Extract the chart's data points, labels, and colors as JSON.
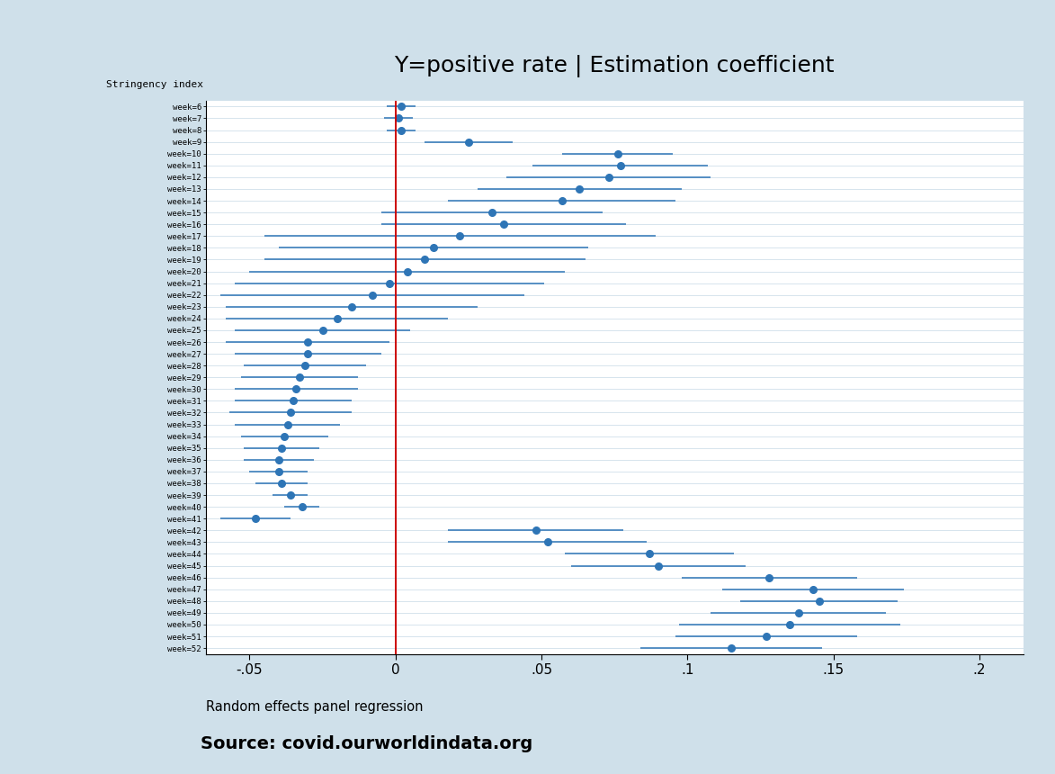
{
  "title": "Y=positive rate | Estimation coefficient",
  "xlabel_note": "Random effects panel regression",
  "source_note": "Source: covid.ourworldindata.org",
  "xlim": [
    -0.065,
    0.215
  ],
  "xticks": [
    -0.05,
    0,
    0.05,
    0.1,
    0.15,
    0.2
  ],
  "xtick_labels": [
    "-.05",
    "0",
    ".05",
    ".1",
    ".15",
    ".2"
  ],
  "background_color": "#cfe0ea",
  "plot_background": "#ffffff",
  "dot_color": "#2e75b6",
  "line_color": "#2e75b6",
  "vline_color": "#cc0000",
  "y_label_top": "Stringency index",
  "weeks": [
    6,
    7,
    8,
    9,
    10,
    11,
    12,
    13,
    14,
    15,
    16,
    17,
    18,
    19,
    20,
    21,
    22,
    23,
    24,
    25,
    26,
    27,
    28,
    29,
    30,
    31,
    32,
    33,
    34,
    35,
    36,
    37,
    38,
    39,
    40,
    41,
    42,
    43,
    44,
    45,
    46,
    47,
    48,
    49,
    50,
    51,
    52
  ],
  "coefs": [
    0.002,
    0.001,
    0.002,
    0.025,
    0.076,
    0.077,
    0.073,
    0.063,
    0.057,
    0.033,
    0.037,
    0.022,
    0.013,
    0.01,
    0.004,
    -0.002,
    -0.008,
    -0.015,
    -0.02,
    -0.025,
    -0.03,
    -0.03,
    -0.031,
    -0.033,
    -0.034,
    -0.035,
    -0.036,
    -0.037,
    -0.038,
    -0.039,
    -0.04,
    -0.04,
    -0.039,
    -0.036,
    -0.032,
    -0.048,
    0.048,
    0.052,
    0.087,
    0.09,
    0.128,
    0.143,
    0.145,
    0.138,
    0.135,
    0.127,
    0.115
  ],
  "ci_lower": [
    -0.003,
    -0.004,
    -0.003,
    0.01,
    0.057,
    0.047,
    0.038,
    0.028,
    0.018,
    -0.005,
    -0.005,
    -0.045,
    -0.04,
    -0.045,
    -0.05,
    -0.055,
    -0.06,
    -0.058,
    -0.058,
    -0.055,
    -0.058,
    -0.055,
    -0.052,
    -0.053,
    -0.055,
    -0.055,
    -0.057,
    -0.055,
    -0.053,
    -0.052,
    -0.052,
    -0.05,
    -0.048,
    -0.042,
    -0.038,
    -0.06,
    0.018,
    0.018,
    0.058,
    0.06,
    0.098,
    0.112,
    0.118,
    0.108,
    0.097,
    0.096,
    0.084
  ],
  "ci_upper": [
    0.007,
    0.006,
    0.007,
    0.04,
    0.095,
    0.107,
    0.108,
    0.098,
    0.096,
    0.071,
    0.079,
    0.089,
    0.066,
    0.065,
    0.058,
    0.051,
    0.044,
    0.028,
    0.018,
    0.005,
    -0.002,
    -0.005,
    -0.01,
    -0.013,
    -0.013,
    -0.015,
    -0.015,
    -0.019,
    -0.023,
    -0.026,
    -0.028,
    -0.03,
    -0.03,
    -0.03,
    -0.026,
    -0.036,
    0.078,
    0.086,
    0.116,
    0.12,
    0.158,
    0.174,
    0.172,
    0.168,
    0.173,
    0.158,
    0.146
  ]
}
